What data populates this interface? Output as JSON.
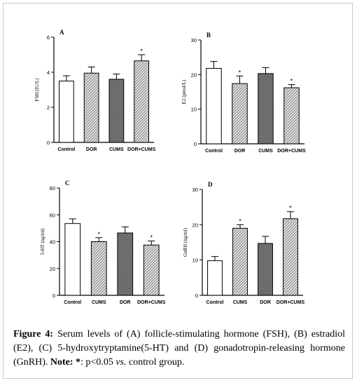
{
  "chart_data": [
    {
      "type": "bar",
      "panel_label": "A",
      "ylabel": "FSH (IU/L)",
      "ylim": [
        0,
        6
      ],
      "yticks": [
        0,
        2,
        4,
        6
      ],
      "categories": [
        "Control",
        "DOR",
        "CUMS",
        "DOR+CUMS"
      ],
      "values": [
        3.5,
        3.95,
        3.6,
        4.65
      ],
      "errors": [
        0.3,
        0.35,
        0.3,
        0.35
      ],
      "significance": [
        "",
        "",
        "",
        "*"
      ],
      "fills": [
        "white",
        "hatch",
        "dense",
        "hatch"
      ],
      "grid": false
    },
    {
      "type": "bar",
      "panel_label": "B",
      "ylabel": "E2 (pmol/L)",
      "ylim": [
        0,
        30
      ],
      "yticks": [
        0,
        10,
        20,
        30
      ],
      "categories": [
        "Control",
        "DOR",
        "CUMS",
        "DOR+CUMS"
      ],
      "values": [
        21.8,
        17.4,
        20.3,
        16.2
      ],
      "errors": [
        2.0,
        2.2,
        1.7,
        0.9
      ],
      "significance": [
        "",
        "*",
        "",
        "*"
      ],
      "fills": [
        "white",
        "hatch",
        "dense",
        "hatch"
      ],
      "grid": false
    },
    {
      "type": "bar",
      "panel_label": "C",
      "ylabel": "5-HT (ng/ml)",
      "ylim": [
        0,
        80
      ],
      "yticks": [
        0,
        20,
        40,
        60,
        80
      ],
      "categories": [
        "Control",
        "CUMS",
        "DOR",
        "DOR+CUMS"
      ],
      "values": [
        53.5,
        40,
        46.5,
        37.5
      ],
      "errors": [
        3.5,
        3.0,
        4.5,
        3.0
      ],
      "significance": [
        "",
        "*",
        "",
        "*"
      ],
      "fills": [
        "white",
        "hatch",
        "dense",
        "hatch"
      ],
      "grid": false
    },
    {
      "type": "bar",
      "panel_label": "D",
      "ylabel": "GnRH (ng/ml)",
      "ylim": [
        0,
        30
      ],
      "yticks": [
        0,
        10,
        20,
        30
      ],
      "categories": [
        "Control",
        "CUMS",
        "DOR",
        "DOR+CUMS"
      ],
      "values": [
        9.8,
        19,
        14.7,
        21.7
      ],
      "errors": [
        1.2,
        1.0,
        2.0,
        2.0
      ],
      "significance": [
        "",
        "*",
        "",
        "*"
      ],
      "fills": [
        "white",
        "hatch",
        "dense",
        "hatch"
      ],
      "grid": false
    }
  ],
  "caption": {
    "label": "Figure 4:",
    "text": "Serum levels of (A) follicle-stimulating hormone (FSH), (B) estradiol (E2), (C) 5-hydroxytryptamine(5-HT) and (D) gonadotropin-releasing hormone (GnRH).",
    "note_label": "Note:",
    "note_star": "*",
    "note_text": ": p<0.05",
    "note_vs": "vs.",
    "note_end": "control group."
  },
  "colors": {
    "bar_stroke": "#000000",
    "dense_fill": "#9a9a9a",
    "hatch_fill": "#d8d8d8"
  }
}
